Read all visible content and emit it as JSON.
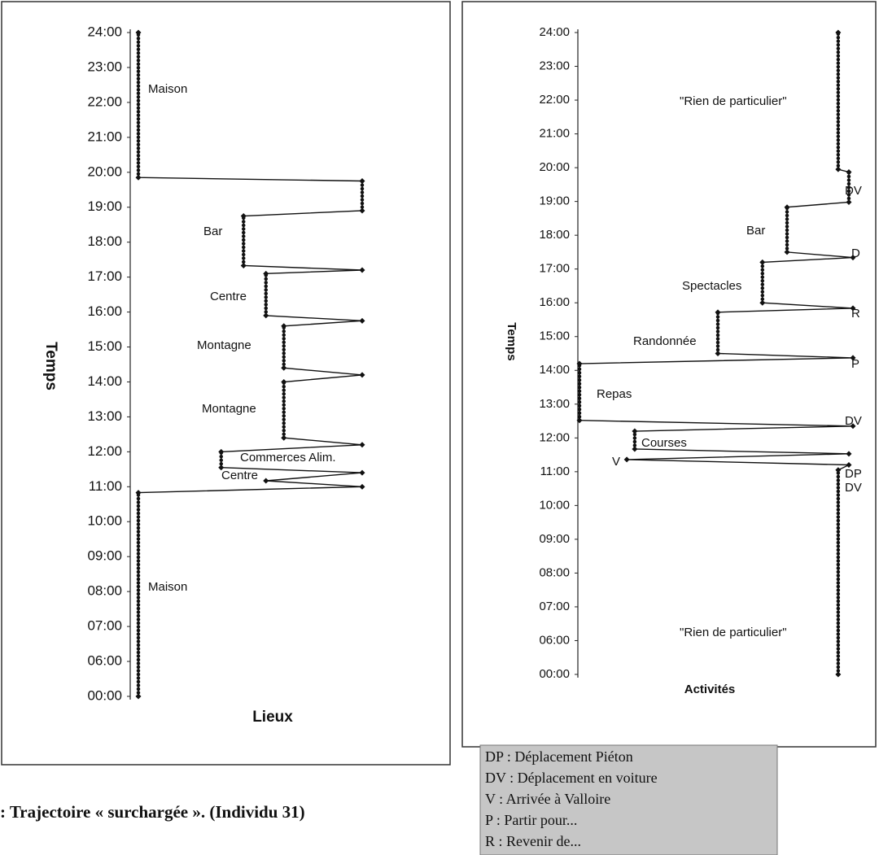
{
  "chart_data": [
    {
      "type": "line",
      "ylabel": "Temps",
      "xlabel": "Lieux",
      "ylim": [
        0,
        19
      ],
      "xlim": [
        0,
        100
      ],
      "yticks": [
        {
          "value": 0,
          "label": "00:00"
        },
        {
          "value": 1,
          "label": "06:00"
        },
        {
          "value": 2,
          "label": "07:00"
        },
        {
          "value": 3,
          "label": "08:00"
        },
        {
          "value": 4,
          "label": "09:00"
        },
        {
          "value": 5,
          "label": "10:00"
        },
        {
          "value": 6,
          "label": "11:00"
        },
        {
          "value": 7,
          "label": "12:00"
        },
        {
          "value": 8,
          "label": "13:00"
        },
        {
          "value": 9,
          "label": "14:00"
        },
        {
          "value": 10,
          "label": "15:00"
        },
        {
          "value": 11,
          "label": "16:00"
        },
        {
          "value": 12,
          "label": "17:00"
        },
        {
          "value": 13,
          "label": "18:00"
        },
        {
          "value": 14,
          "label": "19:00"
        },
        {
          "value": 15,
          "label": "20:00"
        },
        {
          "value": 16,
          "label": "21:00"
        },
        {
          "value": 17,
          "label": "22:00"
        },
        {
          "value": 18,
          "label": "23:00"
        },
        {
          "value": 19,
          "label": "24:00"
        }
      ],
      "x": [
        0,
        0,
        100,
        57,
        100,
        37,
        37,
        100,
        65,
        65,
        100,
        65,
        65,
        100,
        57,
        57,
        100,
        47,
        47,
        100,
        100,
        0,
        0
      ],
      "values": [
        0,
        5.83,
        6.0,
        6.17,
        6.4,
        6.55,
        7.0,
        7.2,
        7.4,
        9.0,
        9.2,
        9.4,
        10.6,
        10.75,
        10.9,
        12.1,
        12.2,
        12.33,
        13.75,
        13.9,
        14.75,
        14.85,
        19
      ],
      "annotations": [
        "Maison",
        "Bar",
        "Centre",
        "Montagne",
        "Montagne",
        "Commerces Alim.",
        "Centre",
        "Maison"
      ]
    },
    {
      "type": "line",
      "ylabel": "Temps",
      "xlabel": "Activités",
      "ylim": [
        0,
        19
      ],
      "xlim": [
        0,
        100
      ],
      "yticks": [
        {
          "value": 0,
          "label": "00:00"
        },
        {
          "value": 1,
          "label": "06:00"
        },
        {
          "value": 2,
          "label": "07:00"
        },
        {
          "value": 3,
          "label": "08:00"
        },
        {
          "value": 4,
          "label": "09:00"
        },
        {
          "value": 5,
          "label": "10:00"
        },
        {
          "value": 6,
          "label": "11:00"
        },
        {
          "value": 7,
          "label": "12:00"
        },
        {
          "value": 8,
          "label": "13:00"
        },
        {
          "value": 9,
          "label": "14:00"
        },
        {
          "value": 10,
          "label": "15:00"
        },
        {
          "value": 11,
          "label": "16:00"
        },
        {
          "value": 12,
          "label": "17:00"
        },
        {
          "value": 13,
          "label": "18:00"
        },
        {
          "value": 14,
          "label": "19:00"
        },
        {
          "value": 15,
          "label": "20:00"
        },
        {
          "value": 16,
          "label": "21:00"
        },
        {
          "value": 17,
          "label": "22:00"
        },
        {
          "value": 18,
          "label": "23:00"
        },
        {
          "value": 19,
          "label": "24:00"
        }
      ],
      "x": [
        94.6,
        94.6,
        98.5,
        17.3,
        98.5,
        20.2,
        20.2,
        100,
        0,
        0,
        100,
        50.6,
        50.6,
        100,
        66.9,
        66.9,
        100,
        75.9,
        75.9,
        98.5,
        98.5,
        94.6,
        94.6
      ],
      "values": [
        0,
        6.05,
        6.2,
        6.36,
        6.53,
        6.67,
        7.2,
        7.35,
        7.52,
        9.2,
        9.37,
        9.5,
        10.72,
        10.84,
        11.0,
        12.2,
        12.34,
        12.5,
        13.83,
        13.98,
        14.87,
        14.95,
        19
      ],
      "annotations": [
        "\"Rien de particulier\"",
        "Bar",
        "Spectacles",
        "Randonnée",
        "Repas",
        "Courses",
        "DV",
        "D",
        "R",
        "P",
        "DV",
        "DP",
        "V",
        "DV",
        "\"Rien de particulier\""
      ]
    }
  ],
  "caption": ": Trajectoire « surchargée ». (Individu 31)",
  "legend": [
    "DP : Déplacement Piéton",
    "DV : Déplacement en voiture",
    "V : Arrivée à Valloire",
    "P : Partir pour...",
    "R : Revenir de..."
  ]
}
